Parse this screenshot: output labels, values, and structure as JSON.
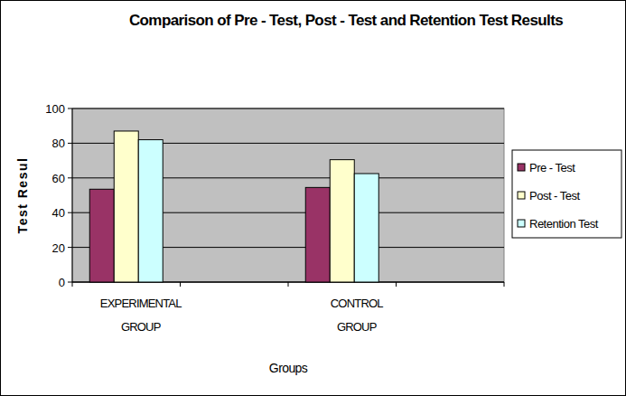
{
  "chart_data": {
    "type": "bar",
    "title": "Comparison of Pre - Test, Post - Test and Retention Test Results",
    "x_label": "Groups",
    "y_label": "Test Resul",
    "categories": [
      "EXPERIMENTAL GROUP",
      "CONTROL GROUP"
    ],
    "series": [
      {
        "name": "Pre - Test",
        "color": "#993366",
        "values": [
          53.5,
          54.5
        ]
      },
      {
        "name": "Post - Test",
        "color": "#FFFFCC",
        "values": [
          87,
          70.5
        ]
      },
      {
        "name": "Retention Test",
        "color": "#CCFFFF",
        "values": [
          82,
          62.5
        ]
      }
    ],
    "ylim": [
      0,
      100
    ],
    "yticks": [
      0,
      20,
      40,
      60,
      80,
      100
    ],
    "grid": true,
    "legend": "right"
  }
}
